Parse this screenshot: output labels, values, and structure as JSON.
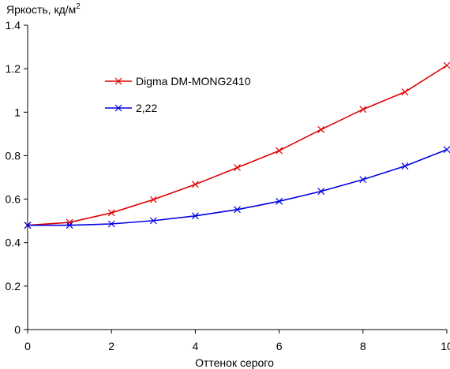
{
  "chart_data": {
    "type": "line",
    "title": "",
    "ylabel_main": "Яркость, кд/м",
    "ylabel_sup": "2",
    "xlabel": "Оттенок серого",
    "xlim": [
      0,
      10
    ],
    "ylim": [
      0,
      1.4
    ],
    "xticks": [
      0,
      2,
      4,
      6,
      8,
      10
    ],
    "yticks": [
      0,
      0.2,
      0.4,
      0.6,
      0.8,
      1,
      1.2,
      1.4
    ],
    "grid": false,
    "legend_position": "upper-left-inside",
    "x": [
      0,
      1,
      2,
      3,
      4,
      5,
      6,
      7,
      8,
      9,
      10
    ],
    "series": [
      {
        "name": "Digma DM-MONG2410",
        "color": "#e00000",
        "marker": "x",
        "values": [
          0.48,
          0.493,
          0.537,
          0.598,
          0.668,
          0.745,
          0.823,
          0.92,
          1.013,
          1.093,
          1.215
        ]
      },
      {
        "name": "2,22",
        "color": "#0000e0",
        "marker": "x",
        "values": [
          0.48,
          0.48,
          0.486,
          0.501,
          0.523,
          0.552,
          0.59,
          0.636,
          0.69,
          0.752,
          0.828
        ]
      }
    ]
  }
}
